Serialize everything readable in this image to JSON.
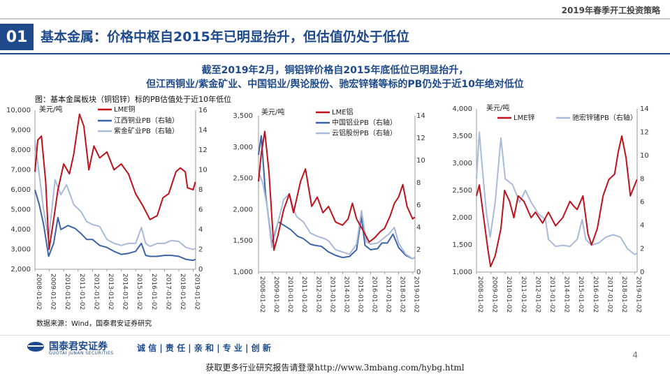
{
  "header": {
    "report_title": "2019年春季开工投资策略"
  },
  "section": {
    "number": "01",
    "title": "基本金属：价格中枢自2015年已明显抬升，但估值仍处于低位"
  },
  "headline": {
    "line1": "截至2019年2月，铜铝锌价格自2015年底低位已明显抬升，",
    "line2": "但江西铜业/紫金矿业、中国铝业/舆论股份、驰宏锌锗等标的PB仍处于近10年绝对低位"
  },
  "figure_caption": "图：基本金属板块（铜铝锌）标的PB估值处于近10年低位",
  "source_note": "数据来源：Wind，国泰君安证券研究",
  "footer": {
    "company_cn": "国泰君安证券",
    "company_en": "GUOTAI JUNAN SECURITIES",
    "slogan": "诚 信 | 责 任 | 亲 和 | 专 业 | 创 新",
    "page_number": "4",
    "link_text": "获取更多行业研究报告请登录http://www.3mbang.com/hybg.html"
  },
  "colors": {
    "brand": "#1e4a8c",
    "metal": "#c0111b",
    "pb_dark": "#3b64a8",
    "pb_light": "#a9b9d8"
  },
  "chart_data": [
    {
      "type": "line",
      "left_unit": "美元/吨",
      "ylim_left": [
        2000,
        10000
      ],
      "yticks_left": [
        2000,
        3000,
        4000,
        5000,
        6000,
        7000,
        8000,
        9000,
        10000
      ],
      "ytick_labels_left": [
        "2,000",
        "3,000",
        "4,000",
        "5,000",
        "6,000",
        "7,000",
        "8,000",
        "9,000",
        "10,000"
      ],
      "ylim_right": [
        0,
        16
      ],
      "yticks_right": [
        0,
        2,
        4,
        6,
        8,
        10,
        12,
        14,
        16
      ],
      "x_range": [
        2008.0,
        2019.17
      ],
      "x_tick_labels": [
        "2008-01-02",
        "2009-01-02",
        "2010-01-02",
        "2011-01-02",
        "2012-01-02",
        "2013-01-02",
        "2014-01-02",
        "2015-01-02",
        "2016-01-02",
        "2017-01-02",
        "2018-01-02",
        "2019-01-02"
      ],
      "series": [
        {
          "name": "LME铜",
          "axis": "left",
          "color": "#c0111b",
          "x": [
            2008.0,
            2008.2,
            2008.45,
            2008.75,
            2008.98,
            2009.3,
            2009.6,
            2010.0,
            2010.4,
            2010.7,
            2011.1,
            2011.4,
            2011.75,
            2012.1,
            2012.5,
            2013.0,
            2013.5,
            2014.0,
            2014.5,
            2015.0,
            2015.5,
            2016.0,
            2016.5,
            2016.9,
            2017.3,
            2017.8,
            2018.1,
            2018.45,
            2018.6,
            2019.0,
            2019.15
          ],
          "y": [
            6900,
            8500,
            8700,
            6400,
            3000,
            4500,
            6000,
            7300,
            6800,
            7800,
            9800,
            9200,
            7000,
            8200,
            7600,
            7900,
            7000,
            7300,
            6800,
            5800,
            5200,
            4500,
            4700,
            5600,
            5800,
            6900,
            7100,
            6900,
            6100,
            6000,
            6400
          ]
        },
        {
          "name": "江西铜业PB（右轴）",
          "axis": "right",
          "color": "#3b64a8",
          "x": [
            2008.0,
            2008.3,
            2008.6,
            2008.95,
            2009.3,
            2009.6,
            2009.8,
            2010.3,
            2010.8,
            2011.2,
            2011.6,
            2012.0,
            2012.5,
            2013.0,
            2013.5,
            2014.0,
            2014.5,
            2015.0,
            2015.4,
            2015.7,
            2016.0,
            2016.5,
            2017.0,
            2017.5,
            2018.0,
            2018.5,
            2019.0,
            2019.15
          ],
          "y": [
            8.0,
            6.5,
            4.5,
            1.3,
            2.6,
            5.2,
            4.0,
            4.4,
            4.1,
            3.6,
            3.0,
            3.0,
            2.4,
            2.2,
            1.8,
            1.5,
            1.6,
            1.8,
            2.6,
            1.4,
            1.3,
            1.3,
            1.4,
            1.4,
            1.3,
            1.0,
            0.9,
            1.0
          ]
        },
        {
          "name": "紫金矿业PB（右轴）",
          "axis": "right",
          "color": "#a9b9d8",
          "x": [
            2008.0,
            2008.3,
            2008.6,
            2008.95,
            2009.4,
            2009.8,
            2010.2,
            2010.7,
            2011.2,
            2011.6,
            2012.0,
            2012.5,
            2013.0,
            2013.5,
            2014.0,
            2014.5,
            2015.0,
            2015.4,
            2015.7,
            2016.0,
            2016.5,
            2017.0,
            2017.5,
            2018.0,
            2018.5,
            2019.0,
            2019.15
          ],
          "y": [
            13.0,
            9.5,
            6.0,
            3.0,
            9.0,
            7.5,
            8.5,
            6.5,
            5.8,
            4.8,
            4.5,
            4.3,
            3.0,
            2.6,
            2.4,
            2.6,
            2.6,
            4.2,
            2.6,
            2.3,
            2.6,
            2.6,
            2.9,
            2.8,
            2.2,
            2.0,
            2.1
          ]
        }
      ]
    },
    {
      "type": "line",
      "left_unit": "美元/吨",
      "ylim_left": [
        1000,
        3500
      ],
      "yticks_left": [
        1000,
        1500,
        2000,
        2500,
        3000,
        3500
      ],
      "ytick_labels_left": [
        "1,000",
        "1,500",
        "2,000",
        "2,500",
        "3,000",
        "3,500"
      ],
      "ylim_right": [
        0,
        14
      ],
      "yticks_right": [
        0,
        2,
        4,
        6,
        8,
        10,
        12,
        14
      ],
      "x_range": [
        2008.0,
        2019.17
      ],
      "x_tick_labels": [
        "2008-01-02",
        "2009-01-02",
        "2010-01-02",
        "2011-01-02",
        "2012-01-02",
        "2013-01-02",
        "2014-01-02",
        "2015-01-02",
        "2016-01-02",
        "2017-01-02",
        "2018-01-02",
        "2019-01-02"
      ],
      "series": [
        {
          "name": "LME铝",
          "axis": "left",
          "color": "#c0111b",
          "x": [
            2008.0,
            2008.2,
            2008.45,
            2008.75,
            2009.1,
            2009.4,
            2009.8,
            2010.2,
            2010.5,
            2011.0,
            2011.35,
            2011.8,
            2012.2,
            2012.6,
            2013.0,
            2013.5,
            2014.0,
            2014.4,
            2014.7,
            2015.0,
            2015.5,
            2015.9,
            2016.3,
            2016.7,
            2017.0,
            2017.4,
            2017.7,
            2018.0,
            2018.3,
            2018.6,
            2019.0,
            2019.15
          ],
          "y": [
            2450,
            2900,
            3250,
            2600,
            1350,
            1600,
            2000,
            2250,
            1950,
            2450,
            2650,
            2050,
            2200,
            1950,
            2050,
            1800,
            1750,
            1850,
            2100,
            1850,
            1650,
            1480,
            1550,
            1650,
            1700,
            1900,
            2100,
            2200,
            2400,
            2050,
            1850,
            1880
          ]
        },
        {
          "name": "中国铝业PB（右轴）",
          "axis": "right",
          "color": "#3b64a8",
          "x": [
            2008.0,
            2008.2,
            2008.5,
            2008.95,
            2009.4,
            2009.8,
            2010.3,
            2010.8,
            2011.2,
            2011.7,
            2012.0,
            2012.5,
            2013.0,
            2013.5,
            2014.0,
            2014.5,
            2015.0,
            2015.35,
            2015.6,
            2016.0,
            2016.5,
            2016.8,
            2017.2,
            2017.6,
            2018.0,
            2018.5,
            2019.0,
            2019.15
          ],
          "y": [
            10.5,
            12.2,
            7.0,
            2.5,
            4.5,
            4.2,
            3.8,
            3.2,
            3.0,
            2.5,
            2.4,
            2.3,
            1.8,
            1.5,
            1.3,
            1.4,
            2.0,
            5.0,
            2.4,
            2.0,
            2.1,
            2.6,
            2.6,
            3.4,
            2.2,
            1.5,
            1.2,
            1.3
          ]
        },
        {
          "name": "云铝股份PB（右轴）",
          "axis": "right",
          "color": "#a9b9d8",
          "x": [
            2008.0,
            2008.3,
            2008.6,
            2008.95,
            2009.4,
            2009.8,
            2010.2,
            2010.7,
            2011.2,
            2011.7,
            2012.2,
            2012.7,
            2013.0,
            2013.5,
            2014.0,
            2014.5,
            2015.0,
            2015.35,
            2015.7,
            2016.0,
            2016.5,
            2016.9,
            2017.3,
            2017.7,
            2018.0,
            2018.5,
            2019.0,
            2019.15
          ],
          "y": [
            9.0,
            8.0,
            6.0,
            2.2,
            4.5,
            6.5,
            7.0,
            5.0,
            4.5,
            3.5,
            3.2,
            3.0,
            2.8,
            2.0,
            1.8,
            1.6,
            2.5,
            5.5,
            2.7,
            2.5,
            2.6,
            3.0,
            3.4,
            4.0,
            2.6,
            1.6,
            1.2,
            1.3
          ]
        }
      ]
    },
    {
      "type": "line",
      "left_unit": "美元/吨",
      "ylim_left": [
        1000,
        4000
      ],
      "yticks_left": [
        1000,
        1500,
        2000,
        2500,
        3000,
        3500,
        4000
      ],
      "ytick_labels_left": [
        "1,000",
        "1,500",
        "2,000",
        "2,500",
        "3,000",
        "3,500",
        "4,000"
      ],
      "ylim_right": [
        0,
        14
      ],
      "yticks_right": [
        0,
        2,
        4,
        6,
        8,
        10,
        12,
        14
      ],
      "x_range": [
        2008.0,
        2019.17
      ],
      "x_tick_labels": [
        "2008-01-02",
        "2009-01-02",
        "2010-01-02",
        "2011-01-02",
        "2012-01-02",
        "2013-01-02",
        "2014-01-02",
        "2015-01-02",
        "2016-01-02",
        "2017-01-02",
        "2018-01-02",
        "2019-01-02"
      ],
      "series": [
        {
          "name": "LME锌",
          "axis": "left",
          "color": "#c0111b",
          "x": [
            2008.0,
            2008.2,
            2008.5,
            2008.8,
            2008.98,
            2009.3,
            2009.7,
            2009.95,
            2010.3,
            2010.6,
            2010.9,
            2011.3,
            2011.8,
            2012.1,
            2012.6,
            2013.0,
            2013.5,
            2014.0,
            2014.5,
            2014.8,
            2015.0,
            2015.4,
            2015.75,
            2016.0,
            2016.4,
            2016.8,
            2017.2,
            2017.6,
            2017.85,
            2018.1,
            2018.4,
            2018.7,
            2019.0,
            2019.15
          ],
          "y": [
            2400,
            2600,
            2000,
            1400,
            1100,
            1300,
            1800,
            2500,
            2300,
            2000,
            2400,
            2300,
            2000,
            2100,
            1900,
            2100,
            1850,
            2000,
            2300,
            2200,
            2150,
            2400,
            1700,
            1500,
            1800,
            2400,
            2700,
            2800,
            3200,
            3500,
            3100,
            2400,
            2600,
            2700
          ]
        },
        {
          "name": "驰宏锌锗PB（右轴）",
          "axis": "right",
          "color": "#a9b9d8",
          "x": [
            2008.0,
            2008.2,
            2008.4,
            2008.7,
            2008.95,
            2009.3,
            2009.7,
            2010.0,
            2010.5,
            2011.0,
            2011.4,
            2011.8,
            2012.3,
            2012.8,
            2013.0,
            2013.5,
            2014.0,
            2014.5,
            2015.0,
            2015.35,
            2015.6,
            2016.0,
            2016.5,
            2017.0,
            2017.5,
            2018.0,
            2018.5,
            2019.0,
            2019.15
          ],
          "y": [
            8.0,
            12.0,
            9.0,
            5.0,
            3.0,
            6.0,
            11.5,
            8.0,
            7.5,
            6.0,
            7.0,
            6.0,
            5.0,
            4.5,
            2.8,
            2.2,
            2.3,
            2.2,
            2.8,
            4.5,
            2.8,
            2.3,
            2.5,
            3.0,
            3.2,
            3.0,
            2.0,
            1.5,
            1.6
          ]
        }
      ]
    }
  ]
}
